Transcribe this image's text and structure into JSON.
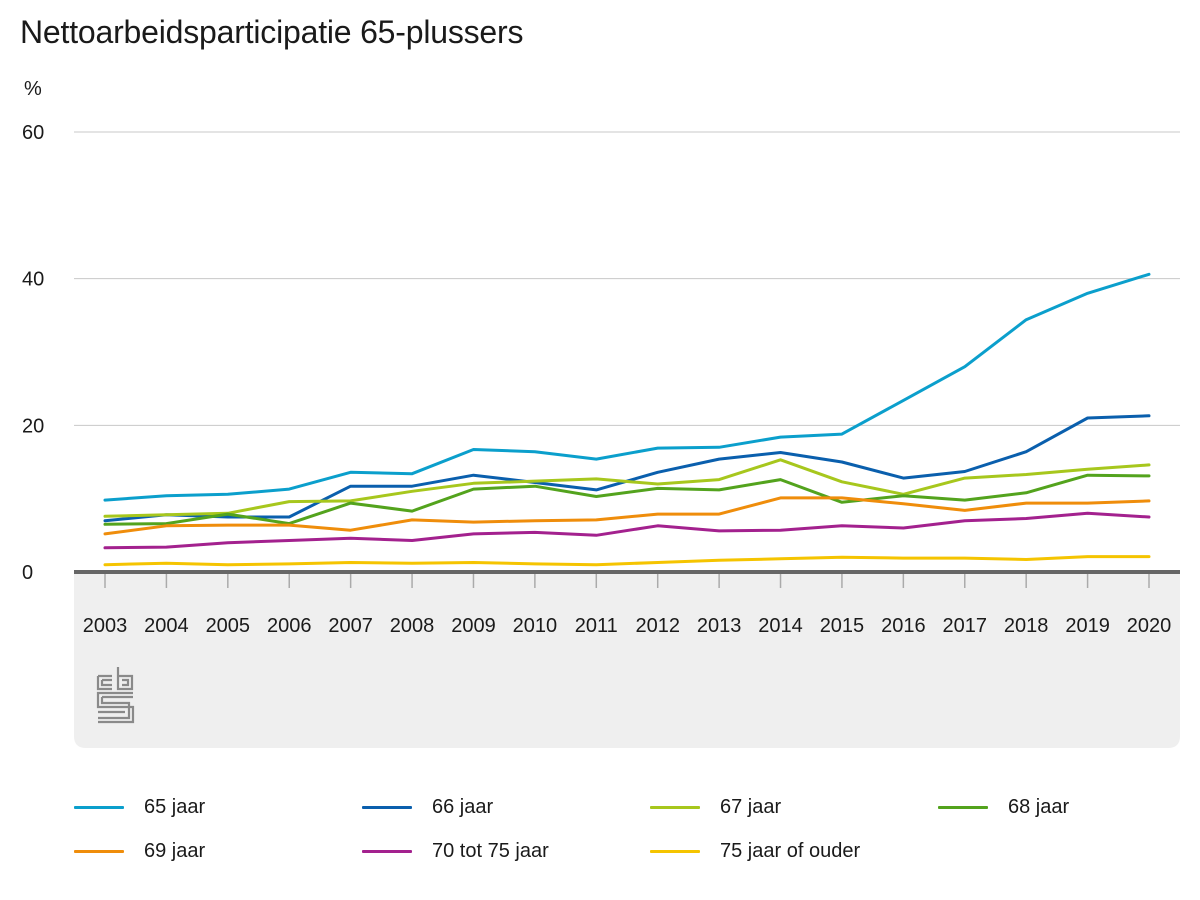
{
  "chart_data": {
    "type": "line",
    "title": "Nettoarbeidsparticipatie 65-plussers",
    "ylabel": "%",
    "xlabel": "",
    "ylim": [
      0,
      60
    ],
    "yticks": [
      0,
      20,
      40,
      60
    ],
    "grid": true,
    "legend_position": "bottom",
    "categories": [
      "2003",
      "2004",
      "2005",
      "2006",
      "2007",
      "2008",
      "2009",
      "2010",
      "2011",
      "2012",
      "2013",
      "2014",
      "2015",
      "2016",
      "2017",
      "2018",
      "2019",
      "2020"
    ],
    "series": [
      {
        "name": "65 jaar",
        "color": "#0b9fcc",
        "values": [
          9.8,
          10.4,
          10.6,
          11.3,
          13.6,
          13.4,
          16.7,
          16.4,
          15.4,
          16.9,
          17.0,
          18.4,
          18.8,
          23.4,
          28.0,
          34.4,
          38.0,
          40.6
        ]
      },
      {
        "name": "66 jaar",
        "color": "#0a5fad",
        "values": [
          7.0,
          7.8,
          7.5,
          7.5,
          11.7,
          11.7,
          13.2,
          12.2,
          11.2,
          13.6,
          15.4,
          16.3,
          15.0,
          12.8,
          13.7,
          16.4,
          21.0,
          21.3
        ]
      },
      {
        "name": "67 jaar",
        "color": "#a7c71d",
        "values": [
          7.6,
          7.8,
          8.0,
          9.6,
          9.7,
          11.0,
          12.1,
          12.4,
          12.7,
          12.0,
          12.6,
          15.3,
          12.3,
          10.6,
          12.8,
          13.3,
          14.0,
          14.6
        ]
      },
      {
        "name": "68 jaar",
        "color": "#53a31d",
        "values": [
          6.5,
          6.6,
          7.9,
          6.6,
          9.4,
          8.3,
          11.3,
          11.7,
          10.3,
          11.4,
          11.2,
          12.6,
          9.5,
          10.4,
          9.8,
          10.8,
          13.2,
          13.1
        ]
      },
      {
        "name": "69 jaar",
        "color": "#ef8d0b",
        "values": [
          5.2,
          6.3,
          6.4,
          6.4,
          5.7,
          7.1,
          6.8,
          7.0,
          7.1,
          7.9,
          7.9,
          10.1,
          10.1,
          9.3,
          8.4,
          9.4,
          9.4,
          9.7
        ]
      },
      {
        "name": "70 tot 75 jaar",
        "color": "#a3218e",
        "values": [
          3.3,
          3.4,
          4.0,
          4.3,
          4.6,
          4.3,
          5.2,
          5.4,
          5.0,
          6.3,
          5.6,
          5.7,
          6.3,
          6.0,
          7.0,
          7.3,
          8.0,
          7.5
        ]
      },
      {
        "name": "75 jaar of ouder",
        "color": "#f5c400",
        "values": [
          1.0,
          1.2,
          1.0,
          1.1,
          1.3,
          1.2,
          1.3,
          1.1,
          1.0,
          1.3,
          1.6,
          1.8,
          2.0,
          1.9,
          1.9,
          1.7,
          2.1,
          2.1
        ]
      }
    ]
  }
}
